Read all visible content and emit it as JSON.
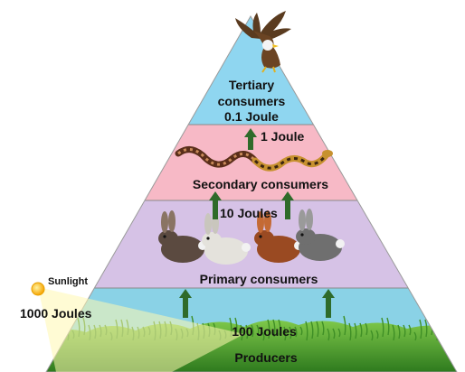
{
  "pyramid": {
    "levels": [
      {
        "id": "tertiary",
        "title_lines": [
          "Tertiary",
          "consumers"
        ],
        "energy": "0.1 Joule",
        "color": "#8fd6f0"
      },
      {
        "id": "secondary",
        "title": "Secondary consumers",
        "color": "#f7b9c6"
      },
      {
        "id": "primary",
        "title": "Primary consumers",
        "color": "#d6c2e6"
      },
      {
        "id": "producers",
        "title": "Producers",
        "color": "#8ad2e6"
      }
    ],
    "transfers": {
      "to_tertiary": "1 Joule",
      "to_secondary": "10 Joules",
      "to_primary": "100 Joules"
    },
    "sunlight": {
      "label": "Sunlight",
      "energy": "1000 Joules",
      "label_color": "#e8731f"
    },
    "arrow_color": "#2f6b2a",
    "organisms": {
      "tertiary": "eagle",
      "secondary": [
        "snake",
        "snake"
      ],
      "primary": [
        "rabbit",
        "rabbit",
        "rabbit",
        "rabbit"
      ],
      "producers": "grass"
    }
  }
}
